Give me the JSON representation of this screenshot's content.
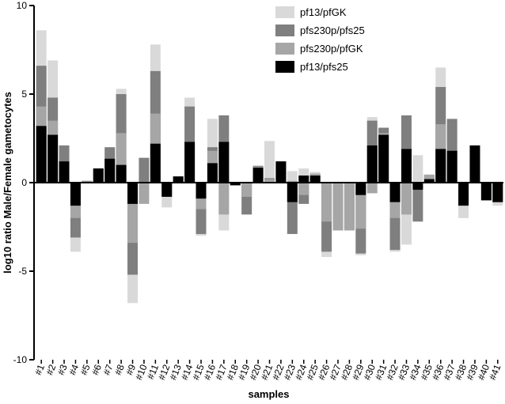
{
  "chart_data": {
    "type": "bar",
    "mode": "overlay",
    "title": "",
    "xlabel": "samples",
    "ylabel": "log10 ratio Male/Female gametocytes",
    "ylim": [
      -10,
      10
    ],
    "yticks": [
      -10,
      -5,
      0,
      5,
      10
    ],
    "grid": false,
    "legend_position": "top-right",
    "categories": [
      "#1",
      "#2",
      "#3",
      "#4",
      "#5",
      "#6",
      "#7",
      "#8",
      "#9",
      "#10",
      "#11",
      "#12",
      "#13",
      "#14",
      "#15",
      "#16",
      "#17",
      "#18",
      "#19",
      "#20",
      "#21",
      "#22",
      "#23",
      "#24",
      "#25",
      "#26",
      "#27",
      "#28",
      "#29",
      "#30",
      "#31",
      "#32",
      "#33",
      "#34",
      "#35",
      "#36",
      "#37",
      "#38",
      "#39",
      "#40",
      "#41"
    ],
    "series": [
      {
        "name": "pf13/pfGK",
        "color": "#d9d9d9",
        "values": [
          8.6,
          6.9,
          2.1,
          -3.9,
          0.1,
          0.8,
          1.9,
          5.3,
          -6.8,
          1.4,
          7.8,
          -1.4,
          0.35,
          4.8,
          -3.0,
          3.6,
          -2.7,
          -0.15,
          -1.8,
          0.95,
          2.35,
          1.2,
          0.65,
          0.8,
          0.6,
          -4.2,
          -2.7,
          -2.7,
          -4.1,
          3.7,
          3.1,
          -3.9,
          -3.5,
          1.55,
          0.45,
          6.5,
          3.5,
          -2.0,
          2.1,
          -1.0,
          -1.3
        ]
      },
      {
        "name": "pfs230p/pfs25",
        "color": "#7f7f7f",
        "values": [
          6.6,
          4.8,
          2.1,
          -3.1,
          0.1,
          0.8,
          2.0,
          5.0,
          -5.2,
          1.4,
          6.3,
          -0.6,
          0.35,
          4.3,
          -2.9,
          2.0,
          3.8,
          -0.15,
          -1.8,
          0.95,
          0.25,
          1.2,
          -2.9,
          -1.2,
          0.5,
          -3.9,
          -2.7,
          -2.7,
          -4.0,
          3.5,
          3.1,
          -3.8,
          3.8,
          -2.2,
          0.45,
          5.4,
          3.6,
          -1.2,
          2.1,
          -1.0,
          -1.1
        ]
      },
      {
        "name": "pfs230p/pfGK",
        "color": "#a6a6a6",
        "values": [
          4.3,
          3.5,
          1.2,
          -2.0,
          0.1,
          0.8,
          1.3,
          2.8,
          -3.4,
          -1.2,
          3.9,
          -0.8,
          0.35,
          2.3,
          -1.5,
          1.8,
          -1.8,
          -0.15,
          -0.8,
          0.9,
          0.2,
          1.2,
          0.1,
          -0.7,
          0.5,
          -2.2,
          -2.7,
          -2.7,
          -2.6,
          -0.6,
          2.8,
          -2.0,
          -1.8,
          -0.2,
          0.45,
          3.3,
          1.8,
          -1.2,
          2.1,
          -1.0,
          -1.1
        ]
      },
      {
        "name": "pf13/pfs25",
        "color": "#000000",
        "values": [
          3.2,
          2.7,
          1.2,
          -1.3,
          0.05,
          0.8,
          1.35,
          1.0,
          -1.2,
          0.0,
          2.2,
          -0.8,
          0.35,
          2.3,
          -0.9,
          1.1,
          2.3,
          -0.15,
          0.0,
          0.85,
          0.0,
          1.2,
          -1.1,
          0.4,
          0.4,
          0.0,
          0.0,
          0.0,
          -0.7,
          2.1,
          2.7,
          -1.1,
          1.9,
          -0.4,
          0.2,
          1.9,
          1.8,
          -1.3,
          2.1,
          -1.0,
          -1.1
        ]
      }
    ]
  }
}
